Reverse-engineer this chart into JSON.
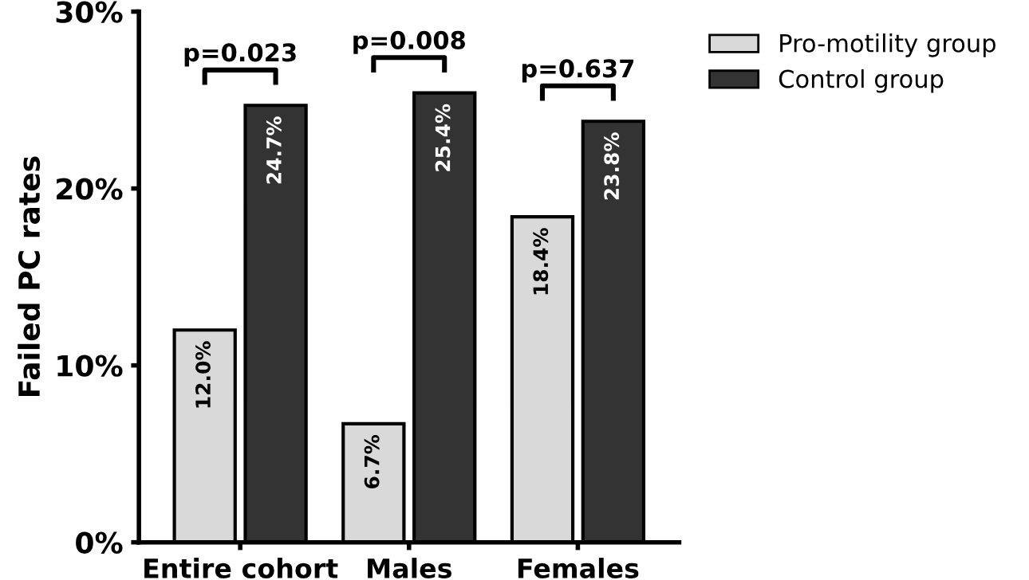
{
  "chart_data": {
    "type": "bar",
    "ylabel": "Failed PC rates",
    "categories": [
      "Entire cohort",
      "Males",
      "Females"
    ],
    "series": [
      {
        "name": "Pro-motility group",
        "color": "#d9d9d9",
        "values": [
          12.0,
          6.7,
          18.4
        ],
        "value_labels": [
          "12.0%",
          "6.7%",
          "18.4%"
        ]
      },
      {
        "name": "Control group",
        "color": "#333333",
        "values": [
          24.7,
          25.4,
          23.8
        ],
        "value_labels": [
          "24.7%",
          "25.4%",
          "23.8%"
        ]
      }
    ],
    "ylim": [
      0,
      30
    ],
    "yticks": [
      {
        "value": 0,
        "label": "0%"
      },
      {
        "value": 10,
        "label": "10%"
      },
      {
        "value": 20,
        "label": "20%"
      },
      {
        "value": 30,
        "label": "30%"
      }
    ],
    "annotations": [
      "p=0.023",
      "p=0.008",
      "p=0.637"
    ],
    "legend": "top right",
    "grid": false
  }
}
